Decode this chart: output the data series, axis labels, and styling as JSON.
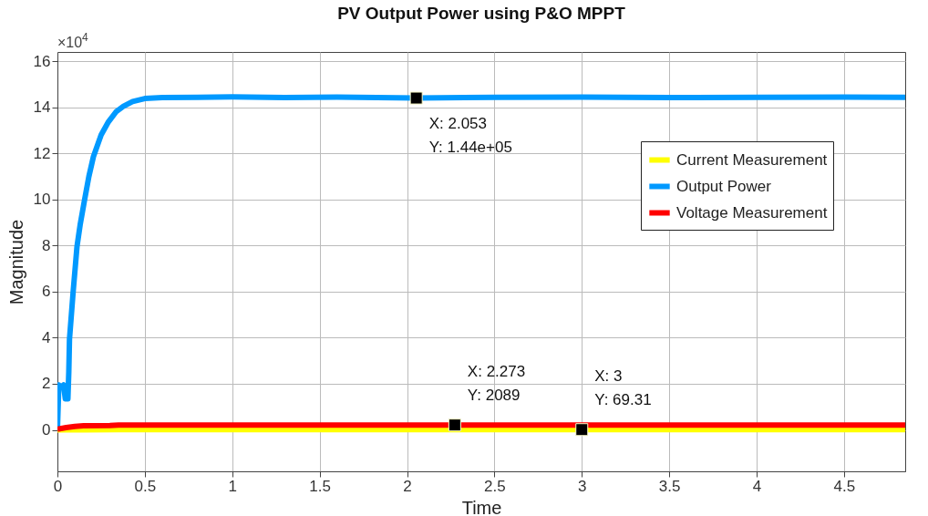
{
  "chart_data": {
    "type": "line",
    "title": "PV Output Power using P&O MPPT",
    "xlabel": "Time",
    "ylabel": "Magnitude",
    "series": [
      {
        "name": "Current Measurement",
        "color": "#ffff00",
        "x": [
          0,
          0.15,
          0.35,
          4.85
        ],
        "values": [
          0,
          0,
          0.01,
          0.01
        ]
      },
      {
        "name": "Output Power",
        "color": "#0099ff",
        "x": [
          0,
          0.008,
          0.02,
          0.035,
          0.045,
          0.06,
          0.065,
          0.069,
          0.09,
          0.112,
          0.13,
          0.155,
          0.18,
          0.206,
          0.25,
          0.292,
          0.335,
          0.377,
          0.43,
          0.5,
          0.6,
          0.8,
          1.0,
          1.3,
          1.6,
          2.053,
          2.5,
          3.0,
          3.5,
          4.0,
          4.5,
          4.85
        ],
        "values": [
          0,
          1.95,
          1.85,
          1.95,
          1.35,
          1.35,
          2.5,
          3.94,
          6.0,
          7.96,
          8.9,
          9.97,
          11.0,
          11.86,
          12.8,
          13.37,
          13.8,
          14.04,
          14.25,
          14.38,
          14.42,
          14.43,
          14.45,
          14.42,
          14.44,
          14.4,
          14.43,
          14.44,
          14.42,
          14.43,
          14.44,
          14.43
        ]
      },
      {
        "name": "Voltage Measurement",
        "color": "#ff0000",
        "x": [
          0,
          0.05,
          0.1,
          0.15,
          0.3,
          0.35,
          2.273,
          4.85
        ],
        "values": [
          0.03,
          0.1,
          0.15,
          0.18,
          0.19,
          0.21,
          0.21,
          0.21
        ]
      }
    ],
    "xlim": [
      0,
      4.85
    ],
    "xticks": [
      0,
      0.5,
      1,
      1.5,
      2,
      2.5,
      3,
      3.5,
      4,
      4.5
    ],
    "ylim": [
      -1.8,
      16.4
    ],
    "yticks": [
      0,
      2,
      4,
      6,
      8,
      10,
      12,
      14,
      16
    ],
    "grid": true,
    "legend": "top right",
    "line_style": "solid",
    "marker": "none",
    "annotations": [
      "×10$^{4}$",
      {
        "text": "X: 2.053\nY: 1.44e+05",
        "x": 2.053,
        "y": 14.4
      },
      {
        "text": "X: 2.273\nY: 2089",
        "x": 2.273,
        "y": 0.21
      },
      {
        "text": "X: 3\nY: 69.31",
        "x": 3,
        "y": 0.01
      }
    ]
  }
}
